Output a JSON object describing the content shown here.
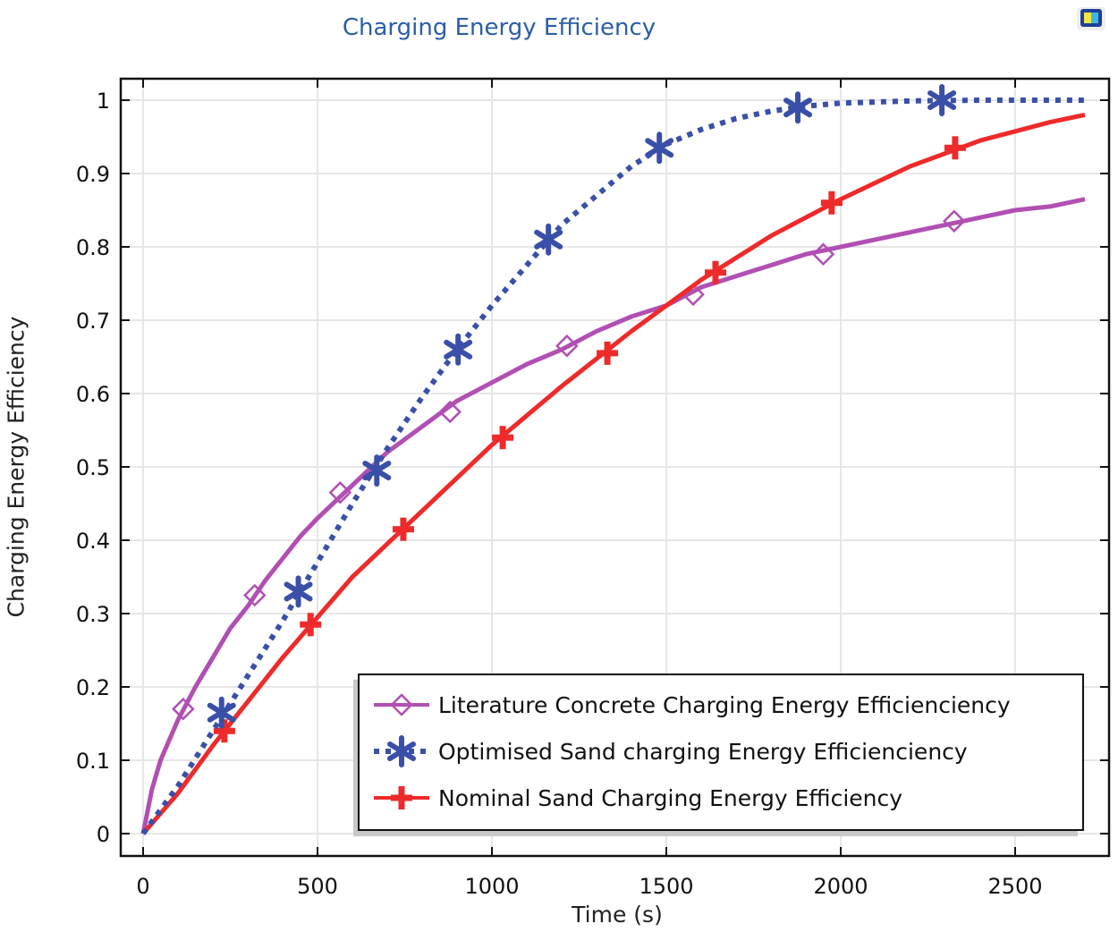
{
  "chart_data": {
    "type": "line",
    "title": "Charging Energy Efficiency",
    "xlabel": "Time (s)",
    "ylabel": "Charging Energy Efficiency",
    "xlim": [
      -60,
      2780
    ],
    "ylim": [
      -0.03,
      1.03
    ],
    "xticks": [
      0,
      500,
      1000,
      1500,
      2000,
      2500
    ],
    "yticks": [
      0,
      0.1,
      0.2,
      0.3,
      0.4,
      0.5,
      0.6,
      0.7,
      0.8,
      0.9,
      1
    ],
    "xtick_labels": [
      "0",
      "500",
      "1000",
      "1500",
      "2000",
      "2500"
    ],
    "ytick_labels": [
      "0",
      "0.1",
      "0.2",
      "0.3",
      "0.4",
      "0.5",
      "0.6",
      "0.7",
      "0.8",
      "0.9",
      "1"
    ],
    "grid": true,
    "legend_position": "bottom-right",
    "series": [
      {
        "name": "Literature Concrete Charging Energy Efficienciency",
        "color": "#b14fb3",
        "line_style": "solid",
        "marker": "diamond",
        "x": [
          0,
          25,
          50,
          100,
          150,
          200,
          250,
          300,
          350,
          400,
          450,
          500,
          600,
          700,
          800,
          900,
          1000,
          1100,
          1200,
          1300,
          1400,
          1500,
          1600,
          1700,
          1800,
          1900,
          2000,
          2100,
          2200,
          2300,
          2400,
          2500,
          2600,
          2700
        ],
        "y": [
          0,
          0.06,
          0.1,
          0.155,
          0.2,
          0.24,
          0.28,
          0.31,
          0.345,
          0.375,
          0.405,
          0.43,
          0.475,
          0.52,
          0.555,
          0.59,
          0.615,
          0.64,
          0.66,
          0.685,
          0.705,
          0.72,
          0.745,
          0.76,
          0.775,
          0.79,
          0.8,
          0.81,
          0.82,
          0.83,
          0.84,
          0.85,
          0.855,
          0.865
        ],
        "marker_x": [
          115,
          320,
          565,
          880,
          1215,
          1577,
          1950,
          2325
        ],
        "marker_y": [
          0.17,
          0.325,
          0.465,
          0.575,
          0.665,
          0.735,
          0.79,
          0.835
        ]
      },
      {
        "name": "Optimised Sand charging  Energy Efficienciency",
        "color": "#3a4fa8",
        "line_style": "dotted",
        "marker": "asterisk",
        "x": [
          0,
          100,
          200,
          300,
          400,
          500,
          600,
          700,
          800,
          900,
          1000,
          1100,
          1200,
          1300,
          1400,
          1500,
          1600,
          1700,
          1800,
          1900,
          2000,
          2200,
          2400,
          2700
        ],
        "y": [
          0,
          0.065,
          0.14,
          0.215,
          0.29,
          0.37,
          0.45,
          0.525,
          0.595,
          0.66,
          0.72,
          0.775,
          0.83,
          0.87,
          0.91,
          0.94,
          0.96,
          0.975,
          0.985,
          0.992,
          0.996,
          0.999,
          1.0,
          1.0
        ],
        "marker_x": [
          225,
          445,
          670,
          903,
          1162,
          1480,
          1877,
          2290
        ],
        "marker_y": [
          0.165,
          0.33,
          0.495,
          0.66,
          0.81,
          0.935,
          0.99,
          1.0
        ]
      },
      {
        "name": "Nominal Sand Charging Energy Efficiency",
        "color": "#ee2a2a",
        "line_style": "solid",
        "marker": "plus",
        "x": [
          0,
          100,
          200,
          300,
          400,
          500,
          600,
          700,
          800,
          900,
          1000,
          1200,
          1400,
          1600,
          1800,
          2000,
          2200,
          2400,
          2600,
          2700
        ],
        "y": [
          0,
          0.055,
          0.12,
          0.18,
          0.24,
          0.295,
          0.35,
          0.395,
          0.44,
          0.485,
          0.53,
          0.61,
          0.685,
          0.755,
          0.815,
          0.865,
          0.91,
          0.945,
          0.97,
          0.98
        ],
        "marker_x": [
          233,
          480,
          746,
          1031,
          1331,
          1641,
          1974,
          2328
        ],
        "marker_y": [
          0.14,
          0.285,
          0.415,
          0.54,
          0.655,
          0.765,
          0.86,
          0.935
        ]
      }
    ]
  },
  "toolbar": {
    "icon": "app-window-icon"
  }
}
